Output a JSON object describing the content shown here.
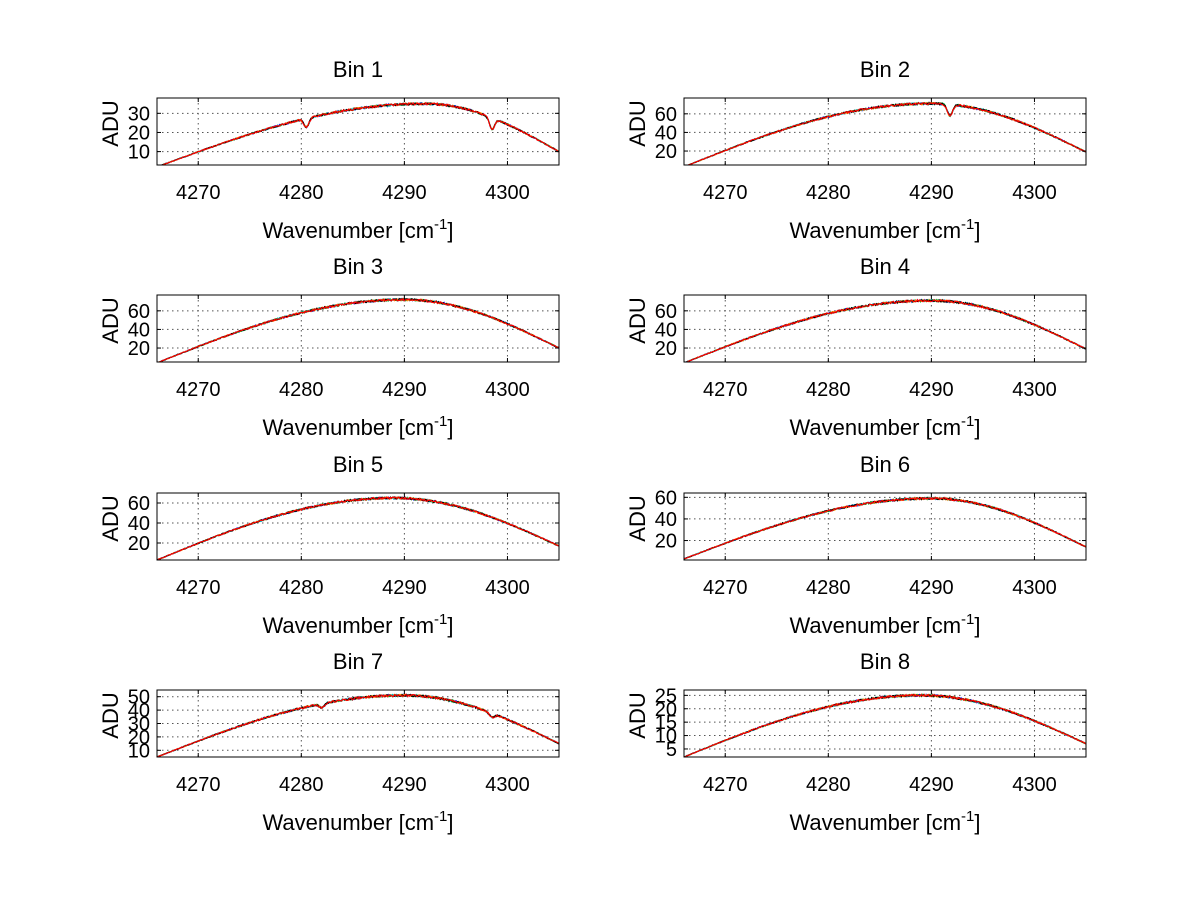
{
  "colors": {
    "background": "#ffffff",
    "axes": "#000000",
    "grid": "#555555",
    "series": [
      "#0000ff",
      "#00a000",
      "#00bfbf",
      "#ff8c00",
      "#000000",
      "#ff0000"
    ]
  },
  "chart_data": [
    {
      "type": "line",
      "title": "Bin 1",
      "xlabel": "Wavenumber [cm",
      "xlabel_sup": "-1",
      "xlabel_end": "]",
      "ylabel": "ADU",
      "xlim": [
        4266,
        4305
      ],
      "ylim": [
        3,
        38
      ],
      "xticks": [
        4270,
        4280,
        4290,
        4300
      ],
      "yticks": [
        10,
        20,
        30
      ],
      "grid": true,
      "curve": {
        "peak_x": 4292,
        "peak_y": 35,
        "left_y": 2,
        "right_y": 10
      },
      "dips": [
        {
          "x": 4280.5,
          "depth": 4.5
        },
        {
          "x": 4298.5,
          "depth": 6
        }
      ]
    },
    {
      "type": "line",
      "title": "Bin 2",
      "xlabel": "Wavenumber [cm",
      "xlabel_sup": "-1",
      "xlabel_end": "]",
      "ylabel": "ADU",
      "xlim": [
        4266,
        4305
      ],
      "ylim": [
        5,
        77
      ],
      "xticks": [
        4270,
        4280,
        4290,
        4300
      ],
      "yticks": [
        20,
        40,
        60
      ],
      "grid": true,
      "curve": {
        "peak_x": 4290,
        "peak_y": 71,
        "left_y": 3,
        "right_y": 19
      },
      "dips": [
        {
          "x": 4291.8,
          "depth": 12
        }
      ]
    },
    {
      "type": "line",
      "title": "Bin 3",
      "xlabel": "Wavenumber [cm",
      "xlabel_sup": "-1",
      "xlabel_end": "]",
      "ylabel": "ADU",
      "xlim": [
        4266,
        4305
      ],
      "ylim": [
        5,
        77
      ],
      "xticks": [
        4270,
        4280,
        4290,
        4300
      ],
      "yticks": [
        20,
        40,
        60
      ],
      "grid": true,
      "curve": {
        "peak_x": 4290,
        "peak_y": 72,
        "left_y": 4,
        "right_y": 20
      },
      "dips": []
    },
    {
      "type": "line",
      "title": "Bin 4",
      "xlabel": "Wavenumber [cm",
      "xlabel_sup": "-1",
      "xlabel_end": "]",
      "ylabel": "ADU",
      "xlim": [
        4266,
        4305
      ],
      "ylim": [
        5,
        77
      ],
      "xticks": [
        4270,
        4280,
        4290,
        4300
      ],
      "yticks": [
        20,
        40,
        60
      ],
      "grid": true,
      "curve": {
        "peak_x": 4290,
        "peak_y": 71,
        "left_y": 4,
        "right_y": 19
      },
      "dips": []
    },
    {
      "type": "line",
      "title": "Bin 5",
      "xlabel": "Wavenumber [cm",
      "xlabel_sup": "-1",
      "xlabel_end": "]",
      "ylabel": "ADU",
      "xlim": [
        4266,
        4305
      ],
      "ylim": [
        3,
        70
      ],
      "xticks": [
        4270,
        4280,
        4290,
        4300
      ],
      "yticks": [
        20,
        40,
        60
      ],
      "grid": true,
      "curve": {
        "peak_x": 4289,
        "peak_y": 65,
        "left_y": 3,
        "right_y": 17
      },
      "dips": []
    },
    {
      "type": "line",
      "title": "Bin 6",
      "xlabel": "Wavenumber [cm",
      "xlabel_sup": "-1",
      "xlabel_end": "]",
      "ylabel": "ADU",
      "xlim": [
        4266,
        4305
      ],
      "ylim": [
        2,
        64
      ],
      "xticks": [
        4270,
        4280,
        4290,
        4300
      ],
      "yticks": [
        20,
        40,
        60
      ],
      "grid": true,
      "curve": {
        "peak_x": 4290,
        "peak_y": 59,
        "left_y": 3,
        "right_y": 14
      },
      "dips": []
    },
    {
      "type": "line",
      "title": "Bin 7",
      "xlabel": "Wavenumber [cm",
      "xlabel_sup": "-1",
      "xlabel_end": "]",
      "ylabel": "ADU",
      "xlim": [
        4266,
        4305
      ],
      "ylim": [
        5,
        55
      ],
      "xticks": [
        4270,
        4280,
        4290,
        4300
      ],
      "yticks": [
        10,
        20,
        30,
        40,
        50
      ],
      "grid": true,
      "curve": {
        "peak_x": 4290,
        "peak_y": 51,
        "left_y": 5,
        "right_y": 15
      },
      "dips": [
        {
          "x": 4282,
          "depth": 3
        },
        {
          "x": 4298.5,
          "depth": 3
        }
      ]
    },
    {
      "type": "line",
      "title": "Bin 8",
      "xlabel": "Wavenumber [cm",
      "xlabel_sup": "-1",
      "xlabel_end": "]",
      "ylabel": "ADU",
      "xlim": [
        4266,
        4305
      ],
      "ylim": [
        2,
        27
      ],
      "xticks": [
        4270,
        4280,
        4290,
        4300
      ],
      "yticks": [
        5,
        10,
        15,
        20,
        25
      ],
      "grid": true,
      "curve": {
        "peak_x": 4289,
        "peak_y": 25,
        "left_y": 2,
        "right_y": 7
      },
      "dips": []
    }
  ]
}
